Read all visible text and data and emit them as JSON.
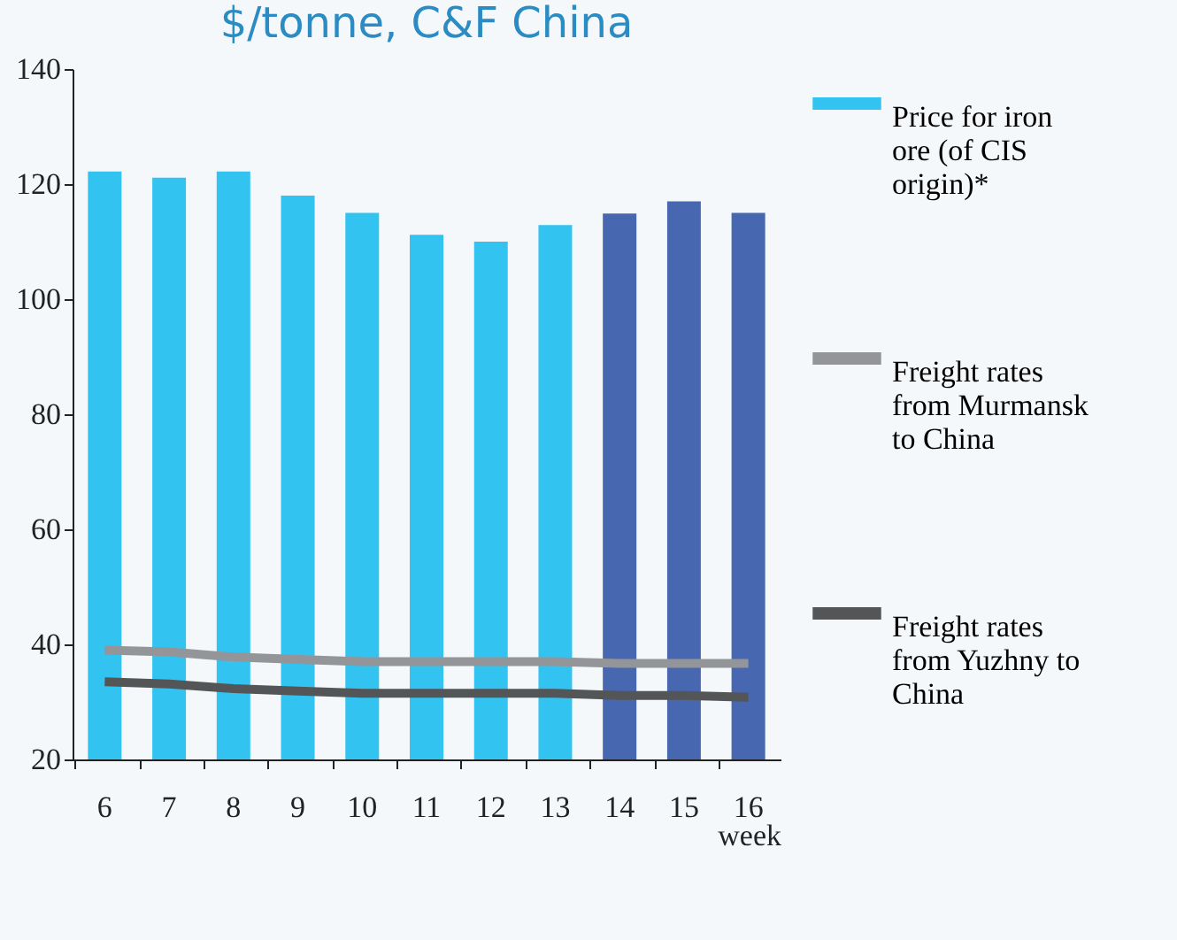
{
  "chart_data": {
    "type": "bar",
    "title": "$/tonne, C&F China",
    "xlabel": "week",
    "categories": [
      "6",
      "7",
      "8",
      "9",
      "10",
      "11",
      "12",
      "13",
      "14",
      "15",
      "16"
    ],
    "series": [
      {
        "name": "Price for iron ore (of CIS origin)*",
        "color": "#33c3f0",
        "colors": [
          "#33c3f0",
          "#33c3f0",
          "#33c3f0",
          "#33c3f0",
          "#33c3f0",
          "#33c3f0",
          "#33c3f0",
          "#33c3f0",
          "#4767b0",
          "#4767b0",
          "#4767b0"
        ],
        "values": [
          122.2,
          121.1,
          122.2,
          118,
          115,
          111.2,
          110,
          112.9,
          114.9,
          117,
          115
        ]
      },
      {
        "name": "Freight rates from Murmansk to China",
        "type": "line",
        "color": "#939598",
        "values": [
          39,
          38.7,
          37.8,
          37.4,
          37,
          37,
          37,
          37,
          36.7,
          36.7,
          36.7
        ]
      },
      {
        "name": "Freight rates from Yuzhny to China",
        "type": "line",
        "color": "#545557",
        "values": [
          33.5,
          33.1,
          32.3,
          31.9,
          31.5,
          31.5,
          31.5,
          31.5,
          31.1,
          31.1,
          30.8
        ]
      }
    ],
    "ylim": [
      20,
      140
    ],
    "yticks": [
      20,
      40,
      60,
      80,
      100,
      120,
      140
    ],
    "grid": false,
    "legend": "right"
  }
}
